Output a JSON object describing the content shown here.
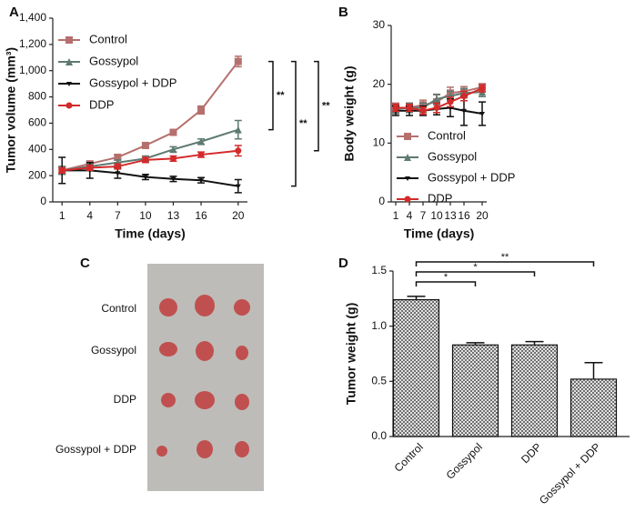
{
  "chart_data": [
    {
      "type": "line",
      "panel": "A",
      "xlabel": "Time (days)",
      "ylabel": "Tumor volume (mm³)",
      "x": [
        1,
        4,
        7,
        10,
        13,
        16,
        20
      ],
      "xlim": [
        0,
        21
      ],
      "xticks": [
        1,
        4,
        7,
        10,
        13,
        16,
        20
      ],
      "ylim": [
        0,
        1400
      ],
      "yticks": [
        0,
        200,
        400,
        600,
        800,
        {
          "value": 1000,
          "label": "1,000"
        },
        {
          "value": 1200,
          "label": "1,200"
        },
        {
          "value": 1400,
          "label": "1,400"
        }
      ],
      "legend": "upper left",
      "series": [
        {
          "name": "Control",
          "color": "#b5706e",
          "marker": "square",
          "values": [
            240,
            290,
            340,
            430,
            530,
            700,
            1070
          ],
          "errors": [
            30,
            20,
            20,
            20,
            20,
            30,
            40
          ]
        },
        {
          "name": "Gossypol",
          "color": "#5e7a72",
          "marker": "triangle",
          "values": [
            240,
            270,
            300,
            330,
            400,
            460,
            550
          ],
          "errors": [
            30,
            20,
            20,
            20,
            20,
            20,
            70
          ]
        },
        {
          "name": "Gossypol + DDP",
          "color": "#111111",
          "marker": "triangle-down",
          "values": [
            240,
            240,
            220,
            190,
            175,
            165,
            120
          ],
          "errors": [
            100,
            60,
            40,
            20,
            20,
            20,
            50
          ]
        },
        {
          "name": "DDP",
          "color": "#d42a2a",
          "marker": "circle",
          "values": [
            240,
            260,
            270,
            320,
            330,
            360,
            390
          ],
          "errors": [
            20,
            20,
            20,
            20,
            20,
            20,
            40
          ]
        }
      ],
      "annotations": [
        {
          "text": "**"
        },
        {
          "text": "**"
        },
        {
          "text": "**"
        }
      ]
    },
    {
      "type": "line",
      "panel": "B",
      "xlabel": "Time (days)",
      "ylabel": "Body weight (g)",
      "x": [
        1,
        4,
        7,
        10,
        13,
        16,
        20
      ],
      "xlim": [
        0,
        21
      ],
      "xticks": [
        1,
        4,
        7,
        10,
        13,
        16,
        20
      ],
      "ylim": [
        0,
        30
      ],
      "yticks": [
        0,
        10,
        20,
        30
      ],
      "legend": "lower left",
      "series": [
        {
          "name": "Control",
          "color": "#b5706e",
          "marker": "square",
          "values": [
            16,
            16,
            16.5,
            17,
            18.5,
            18.8,
            19.5
          ],
          "errors": [
            0.8,
            0.8,
            0.8,
            1.2,
            1,
            0.8,
            0.6
          ]
        },
        {
          "name": "Gossypol",
          "color": "#5e7a72",
          "marker": "triangle",
          "values": [
            15.8,
            16,
            16,
            17.5,
            18,
            18.5,
            18.7
          ],
          "errors": [
            0.8,
            0.8,
            0.8,
            0.8,
            0.8,
            0.8,
            0.8
          ]
        },
        {
          "name": "Gossypol + DDP",
          "color": "#111111",
          "marker": "triangle-down",
          "values": [
            15.5,
            15.5,
            15.5,
            15.8,
            16,
            15.5,
            15
          ],
          "errors": [
            0.8,
            0.8,
            0.8,
            1,
            1.5,
            2.5,
            2
          ]
        },
        {
          "name": "DDP",
          "color": "#d42a2a",
          "marker": "circle",
          "values": [
            16,
            16,
            15.5,
            16,
            17,
            18,
            19.3
          ],
          "errors": [
            0.6,
            0.6,
            0.6,
            0.8,
            0.8,
            0.8,
            0.6
          ]
        }
      ]
    },
    {
      "type": "bar",
      "panel": "D",
      "ylabel": "Tumor weight (g)",
      "categories": [
        "Control",
        "Gossypol",
        "DDP",
        "Gossypol + DDP"
      ],
      "values": [
        1.24,
        0.83,
        0.83,
        0.52
      ],
      "errors": [
        0.03,
        0.02,
        0.03,
        0.15
      ],
      "ylim": [
        0,
        1.5
      ],
      "yticks": [
        {
          "value": 0,
          "label": "0.0"
        },
        0.5,
        {
          "value": 1,
          "label": "1.0"
        },
        1.5
      ],
      "annotations": [
        {
          "text": "*"
        },
        {
          "text": "*"
        },
        {
          "text": "**"
        }
      ]
    }
  ],
  "photo": {
    "panel": "C",
    "rows": [
      "Control",
      "Gossypol",
      "DDP",
      "Gossypol + DDP"
    ]
  }
}
